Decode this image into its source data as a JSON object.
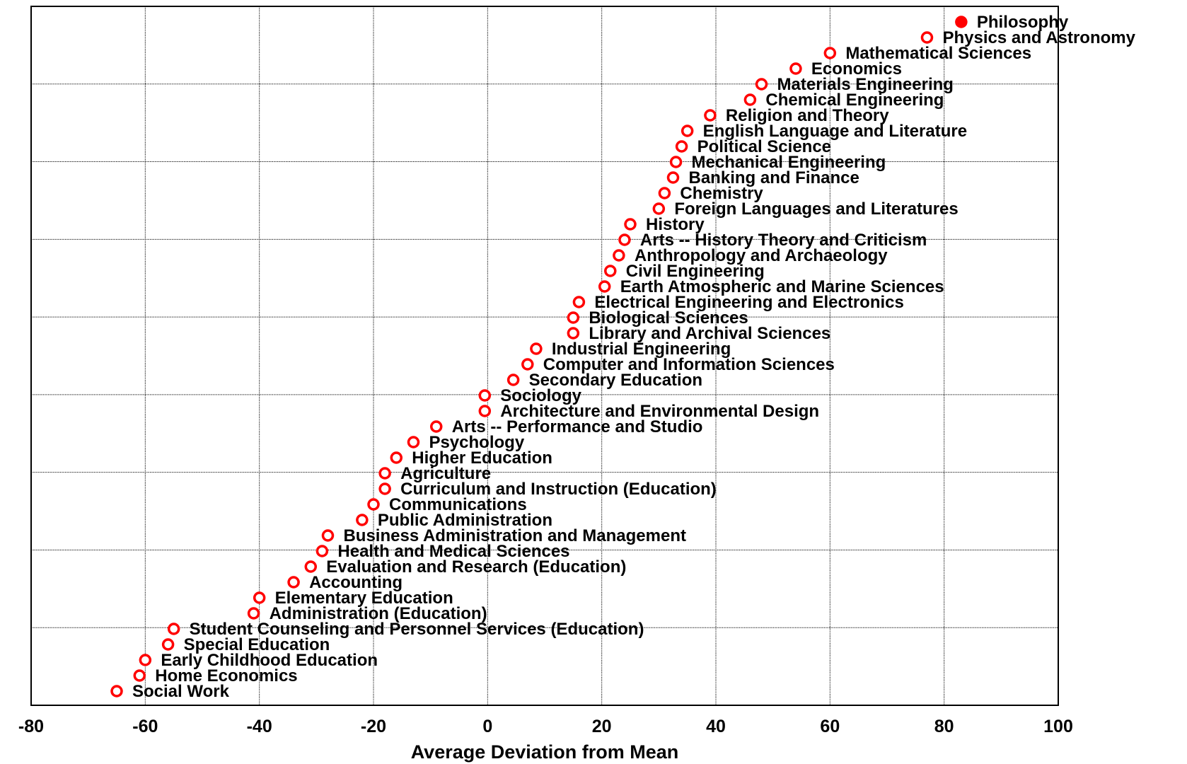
{
  "chart_data": {
    "type": "scatter",
    "title": "",
    "xlabel": "Average Deviation from Mean",
    "ylabel": "",
    "xlim": [
      -80,
      100
    ],
    "x_ticks": [
      -80,
      -60,
      -40,
      -20,
      0,
      20,
      40,
      60,
      80,
      100
    ],
    "grid": true,
    "marker_color": "#ff0000",
    "points": [
      {
        "label": "Philosophy",
        "x": 83,
        "filled": true
      },
      {
        "label": "Physics and Astronomy",
        "x": 77
      },
      {
        "label": "Mathematical Sciences",
        "x": 60
      },
      {
        "label": "Economics",
        "x": 54
      },
      {
        "label": "Materials Engineering",
        "x": 48
      },
      {
        "label": "Chemical Engineering",
        "x": 46
      },
      {
        "label": "Religion and Theory",
        "x": 39
      },
      {
        "label": "English Language and Literature",
        "x": 35
      },
      {
        "label": "Political Science",
        "x": 34
      },
      {
        "label": "Mechanical Engineering",
        "x": 33
      },
      {
        "label": "Banking and Finance",
        "x": 32.5
      },
      {
        "label": "Chemistry",
        "x": 31
      },
      {
        "label": "Foreign Languages and Literatures",
        "x": 30
      },
      {
        "label": "History",
        "x": 25
      },
      {
        "label": "Arts -- History Theory and Criticism",
        "x": 24
      },
      {
        "label": "Anthropology and Archaeology",
        "x": 23
      },
      {
        "label": "Civil Engineering",
        "x": 21.5
      },
      {
        "label": "Earth Atmospheric and Marine Sciences",
        "x": 20.5
      },
      {
        "label": "Electrical Engineering and Electronics",
        "x": 16
      },
      {
        "label": "Biological Sciences",
        "x": 15
      },
      {
        "label": "Library and Archival Sciences",
        "x": 15
      },
      {
        "label": "Industrial Engineering",
        "x": 8.5
      },
      {
        "label": "Computer and Information Sciences",
        "x": 7
      },
      {
        "label": "Secondary Education",
        "x": 4.5
      },
      {
        "label": "Sociology",
        "x": -0.5
      },
      {
        "label": "Architecture and Environmental Design",
        "x": -0.5
      },
      {
        "label": "Arts -- Performance and Studio",
        "x": -9
      },
      {
        "label": "Psychology",
        "x": -13
      },
      {
        "label": "Higher Education",
        "x": -16
      },
      {
        "label": "Agriculture",
        "x": -18
      },
      {
        "label": "Curriculum and Instruction (Education)",
        "x": -18
      },
      {
        "label": "Communications",
        "x": -20
      },
      {
        "label": "Public Administration",
        "x": -22
      },
      {
        "label": "Business Administration and Management",
        "x": -28
      },
      {
        "label": "Health and Medical Sciences",
        "x": -29
      },
      {
        "label": "Evaluation and Research (Education)",
        "x": -31
      },
      {
        "label": "Accounting",
        "x": -34
      },
      {
        "label": "Elementary Education",
        "x": -40
      },
      {
        "label": "Administration (Education)",
        "x": -41
      },
      {
        "label": "Student Counseling and Personnel Services (Education)",
        "x": -55
      },
      {
        "label": "Special Education",
        "x": -56
      },
      {
        "label": "Early Childhood Education",
        "x": -60
      },
      {
        "label": "Home Economics",
        "x": -61
      },
      {
        "label": "Social Work",
        "x": -65
      }
    ]
  }
}
